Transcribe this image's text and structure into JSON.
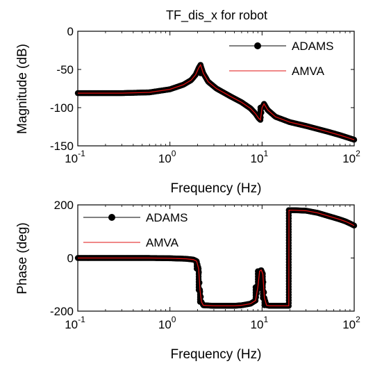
{
  "chart_data": [
    {
      "type": "line",
      "title": "TF_dis_x for robot",
      "xlabel": "Frequency (Hz)",
      "ylabel": "Magnitude (dB)",
      "xscale": "log",
      "xlim": [
        0.1,
        100
      ],
      "ylim": [
        -150,
        0
      ],
      "xticks": [
        {
          "base": "10",
          "exp": "-1"
        },
        {
          "base": "10",
          "exp": "0"
        },
        {
          "base": "10",
          "exp": "1"
        },
        {
          "base": "10",
          "exp": "2"
        }
      ],
      "yticks": [
        "0",
        "-50",
        "-100",
        "-150"
      ],
      "legend_position": "top-right",
      "series": [
        {
          "name": "ADAMS",
          "color": "#000000",
          "marker": "filled-circle",
          "x": [
            0.1,
            0.3,
            0.6,
            1.0,
            1.4,
            1.7,
            1.9,
            2.05,
            2.15,
            2.3,
            2.6,
            3.2,
            4.5,
            6.0,
            7.5,
            8.5,
            9.2,
            9.6,
            10.0,
            10.5,
            11.5,
            14,
            20,
            30,
            50,
            70,
            100
          ],
          "y": [
            -81,
            -81,
            -80,
            -76,
            -70,
            -64,
            -57,
            -48,
            -44,
            -55,
            -66,
            -75,
            -85,
            -93,
            -101,
            -108,
            -114,
            -116,
            -100,
            -95,
            -103,
            -112,
            -119,
            -124,
            -131,
            -136,
            -142
          ]
        },
        {
          "name": "AMVA",
          "color": "#e01010",
          "marker": "none",
          "x": [
            0.1,
            0.3,
            0.6,
            1.0,
            1.4,
            1.7,
            1.9,
            2.05,
            2.15,
            2.3,
            2.6,
            3.2,
            4.5,
            6.0,
            7.5,
            8.5,
            9.2,
            9.6,
            10.0,
            10.5,
            11.5,
            14,
            20,
            30,
            50,
            70,
            100
          ],
          "y": [
            -81,
            -81,
            -80,
            -76,
            -70,
            -64,
            -57,
            -48,
            -44,
            -55,
            -66,
            -75,
            -85,
            -93,
            -101,
            -108,
            -114,
            -116,
            -100,
            -95,
            -103,
            -112,
            -119,
            -124,
            -131,
            -136,
            -142
          ]
        }
      ]
    },
    {
      "type": "line",
      "xlabel": "Frequency (Hz)",
      "ylabel": "Phase (deg)",
      "xscale": "log",
      "xlim": [
        0.1,
        100
      ],
      "ylim": [
        -200,
        200
      ],
      "xticks": [
        {
          "base": "10",
          "exp": "-1"
        },
        {
          "base": "10",
          "exp": "0"
        },
        {
          "base": "10",
          "exp": "1"
        },
        {
          "base": "10",
          "exp": "2"
        }
      ],
      "yticks": [
        "200",
        "0",
        "-200"
      ],
      "legend_position": "top-left",
      "series": [
        {
          "name": "ADAMS",
          "color": "#000000",
          "marker": "filled-circle",
          "x": [
            0.1,
            0.3,
            0.6,
            1.0,
            1.5,
            1.8,
            1.95,
            2.05,
            2.12,
            2.2,
            2.3,
            3,
            4,
            5,
            6,
            7.5,
            8.5,
            9.0,
            9.4,
            9.8,
            10.2,
            10.6,
            11.2,
            12,
            15,
            19.5,
            19.6,
            22,
            30,
            40,
            50,
            60,
            70,
            80,
            90,
            100
          ],
          "y": [
            0,
            0,
            0,
            -1,
            -3,
            -6,
            -12,
            -40,
            -120,
            -165,
            -178,
            -180,
            -180,
            -180,
            -178,
            -172,
            -160,
            -110,
            -50,
            -45,
            -60,
            -150,
            -178,
            -180,
            -180,
            -180,
            180,
            180,
            178,
            170,
            160,
            152,
            145,
            138,
            130,
            122
          ]
        },
        {
          "name": "AMVA",
          "color": "#e01010",
          "marker": "none",
          "x": [
            0.1,
            0.3,
            0.6,
            1.0,
            1.5,
            1.8,
            1.95,
            2.05,
            2.12,
            2.2,
            2.3,
            3,
            4,
            5,
            6,
            7.5,
            8.5,
            9.0,
            9.4,
            9.8,
            10.2,
            10.6,
            11.2,
            12,
            15,
            19.5,
            19.6,
            22,
            30,
            40,
            50,
            60,
            70,
            80,
            90,
            100
          ],
          "y": [
            0,
            0,
            0,
            -1,
            -3,
            -6,
            -12,
            -40,
            -120,
            -165,
            -178,
            -180,
            -180,
            -180,
            -178,
            -172,
            -160,
            -110,
            -50,
            -45,
            -60,
            -150,
            -178,
            -180,
            -180,
            -180,
            180,
            180,
            178,
            170,
            160,
            152,
            145,
            138,
            130,
            122
          ]
        }
      ]
    }
  ]
}
